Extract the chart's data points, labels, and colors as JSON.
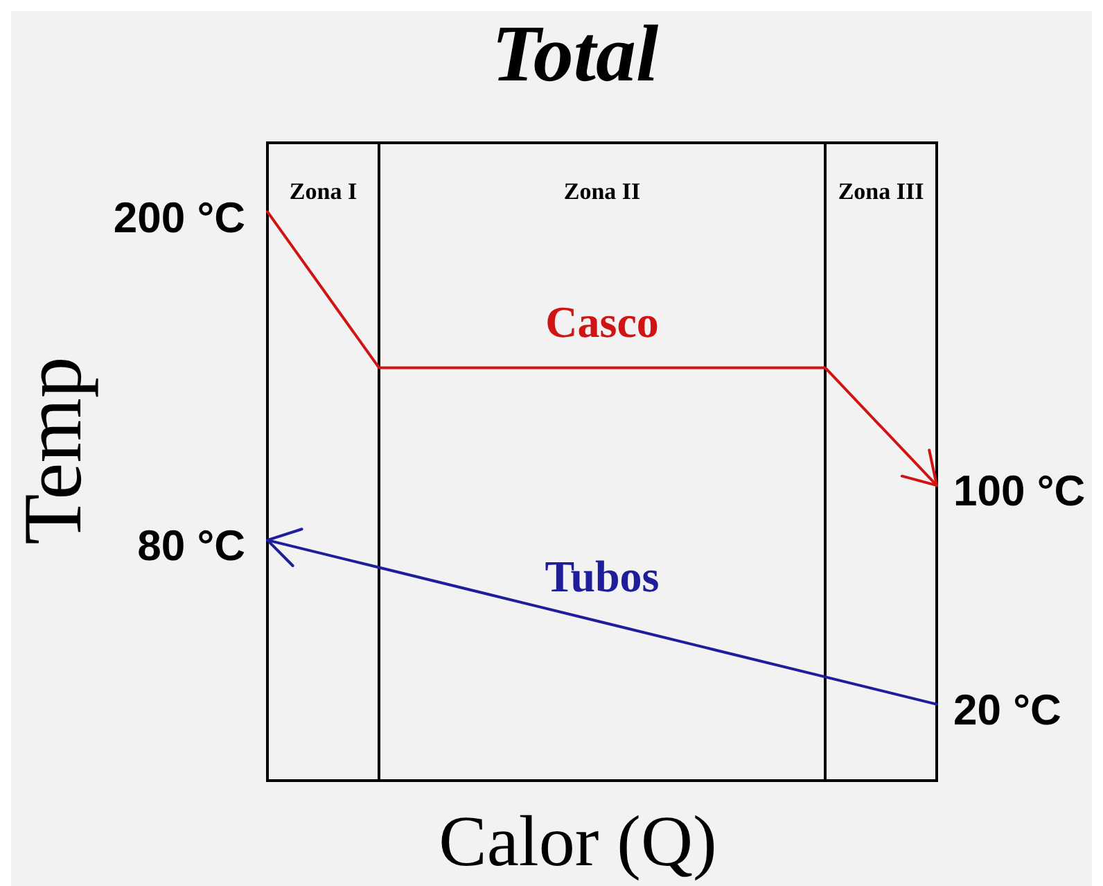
{
  "chart_data": {
    "type": "line",
    "title": "Total",
    "xlabel": "Calor (Q)",
    "ylabel": "Temp",
    "categories": [
      null,
      null,
      null,
      null,
      null,
      null,
      null
    ],
    "series": [
      {
        "name": "Casco",
        "color": "#d01414",
        "values": [
          200,
          143,
          143,
          143,
          143,
          143,
          100
        ],
        "value_labels": [
          "200 °C",
          null,
          null,
          null,
          null,
          null,
          "100 °C"
        ]
      },
      {
        "name": "Tubos",
        "color": "#1e1e9c",
        "values": [
          80,
          70,
          60,
          50,
          40,
          30,
          20
        ],
        "value_labels": [
          "80 °C",
          null,
          null,
          null,
          null,
          null,
          "20 °C"
        ]
      }
    ],
    "annotations": [
      "Zona I",
      "Zona II",
      "Zona III"
    ],
    "tick_labels": false,
    "grid": false,
    "legend": false,
    "marker": "none",
    "line_style": "solid"
  }
}
